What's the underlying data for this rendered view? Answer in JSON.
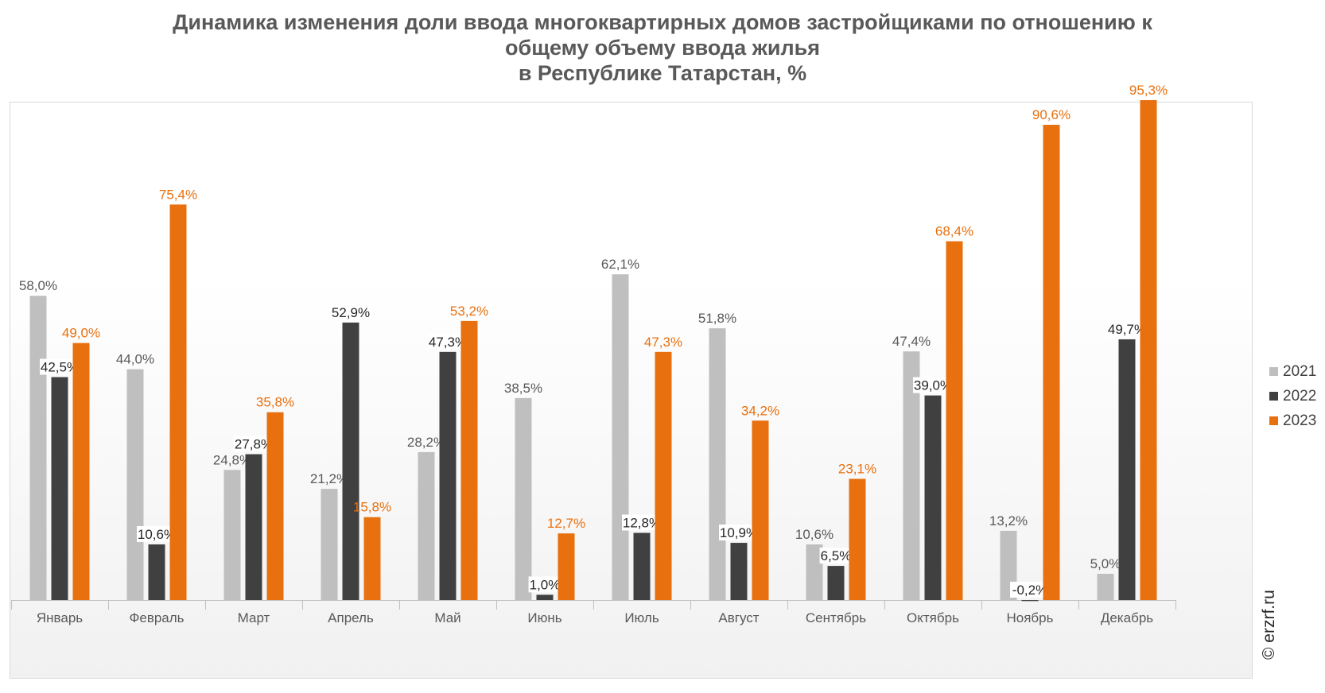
{
  "title": {
    "line1": "Динамика изменения доли ввода многоквартирных домов застройщиками по отношению к",
    "line2": "общему объему ввода жилья",
    "line3": "в Республике Татарстан, %"
  },
  "watermark": "© erzrf.ru",
  "colors": {
    "s2021": "#bfbfbf",
    "s2022": "#404040",
    "s2023": "#e8700e",
    "label2021": "#595959",
    "label2022": "#262626",
    "label2023": "#e8700e",
    "axis": "#bfbfbf",
    "text": "#595959"
  },
  "chart_data": {
    "type": "bar",
    "categories": [
      "Январь",
      "Февраль",
      "Март",
      "Апрель",
      "Май",
      "Июнь",
      "Июль",
      "Август",
      "Сентябрь",
      "Октябрь",
      "Ноябрь",
      "Декабрь"
    ],
    "series": [
      {
        "name": "2021",
        "values": [
          58.0,
          44.0,
          24.8,
          21.2,
          28.2,
          38.5,
          62.1,
          51.8,
          10.6,
          47.4,
          13.2,
          5.0
        ],
        "labels": [
          "58,0%",
          "44,0%",
          "24,8%",
          "21,2%",
          "28,2%",
          "38,5%",
          "62,1%",
          "51,8%",
          "10,6%",
          "47,4%",
          "13,2%",
          "5,0%"
        ]
      },
      {
        "name": "2022",
        "values": [
          42.5,
          10.6,
          27.8,
          52.9,
          47.3,
          1.0,
          12.8,
          10.9,
          6.5,
          39.0,
          -0.2,
          49.7
        ],
        "labels": [
          "42,5%",
          "10,6%",
          "27,8%",
          "52,9%",
          "47,3%",
          "1,0%",
          "12,8%",
          "10,9%",
          "6,5%",
          "39,0%",
          "-0,2%",
          "49,7%"
        ]
      },
      {
        "name": "2023",
        "values": [
          49.0,
          75.4,
          35.8,
          15.8,
          53.2,
          12.7,
          47.3,
          34.2,
          23.1,
          68.4,
          90.6,
          95.3
        ],
        "labels": [
          "49,0%",
          "75,4%",
          "35,8%",
          "15,8%",
          "53,2%",
          "12,7%",
          "47,3%",
          "34,2%",
          "23,1%",
          "68,4%",
          "90,6%",
          "95,3%"
        ]
      }
    ],
    "legend_position": "right",
    "grid": false
  }
}
